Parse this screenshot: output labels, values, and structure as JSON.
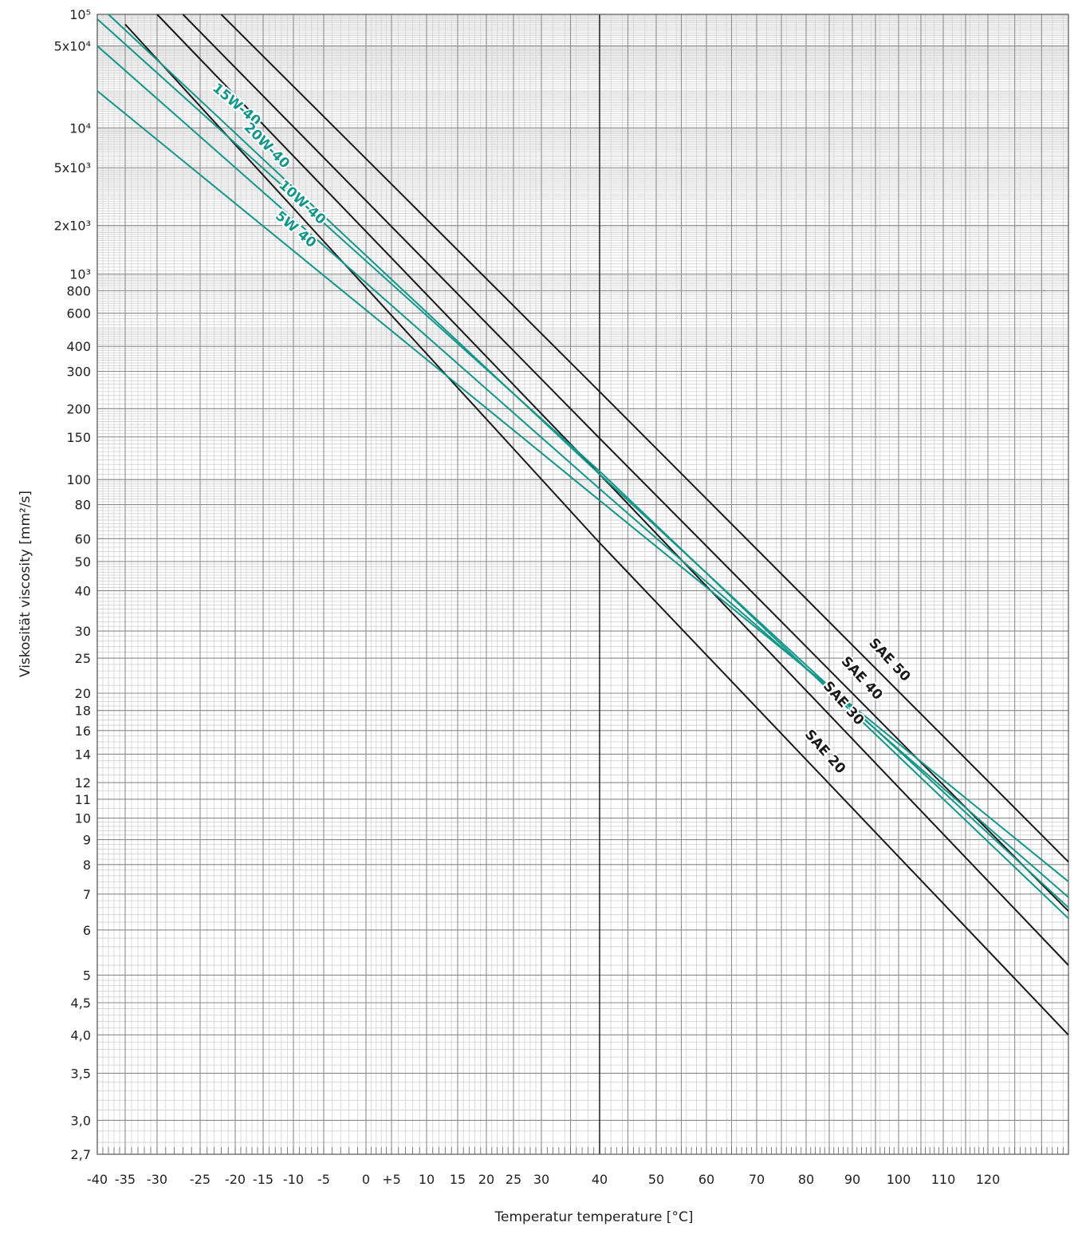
{
  "chart_data": {
    "type": "line",
    "title": "",
    "xlabel": "Temperatur temperature [°C]",
    "ylabel": "Viskosität viscosity [mm²/s]",
    "x_axis_scale": "Walther/ASTM-type temperature scale (compressed at low temperatures)",
    "y_axis_scale": "double-log (Walther) viscosity scale",
    "xlim": [
      -40,
      135
    ],
    "ylim": [
      2.7,
      100000
    ],
    "x_tick_labels": [
      {
        "value": -40,
        "label": "-40"
      },
      {
        "value": -35,
        "label": "-35"
      },
      {
        "value": -30,
        "label": "-30"
      },
      {
        "value": -25,
        "label": "-25"
      },
      {
        "value": -20,
        "label": "-20"
      },
      {
        "value": -15,
        "label": "-15"
      },
      {
        "value": -10,
        "label": "-10"
      },
      {
        "value": -5,
        "label": "-5"
      },
      {
        "value": 0,
        "label": "0"
      },
      {
        "value": 5,
        "label": "+5"
      },
      {
        "value": 10,
        "label": "10"
      },
      {
        "value": 15,
        "label": "15"
      },
      {
        "value": 20,
        "label": "20"
      },
      {
        "value": 25,
        "label": "25"
      },
      {
        "value": 30,
        "label": "30"
      },
      {
        "value": 40,
        "label": "40"
      },
      {
        "value": 50,
        "label": "50"
      },
      {
        "value": 60,
        "label": "60"
      },
      {
        "value": 70,
        "label": "70"
      },
      {
        "value": 80,
        "label": "80"
      },
      {
        "value": 90,
        "label": "90"
      },
      {
        "value": 100,
        "label": "100"
      },
      {
        "value": 110,
        "label": "110"
      },
      {
        "value": 120,
        "label": "120"
      }
    ],
    "y_tick_labels": [
      {
        "value": 100000,
        "label": "10⁵"
      },
      {
        "value": 50000,
        "label": "5x10⁴"
      },
      {
        "value": 10000,
        "label": "10⁴"
      },
      {
        "value": 5000,
        "label": "5x10³"
      },
      {
        "value": 2000,
        "label": "2x10³"
      },
      {
        "value": 1000,
        "label": "10³"
      },
      {
        "value": 800,
        "label": "800"
      },
      {
        "value": 600,
        "label": "600"
      },
      {
        "value": 400,
        "label": "400"
      },
      {
        "value": 300,
        "label": "300"
      },
      {
        "value": 200,
        "label": "200"
      },
      {
        "value": 150,
        "label": "150"
      },
      {
        "value": 100,
        "label": "100"
      },
      {
        "value": 80,
        "label": "80"
      },
      {
        "value": 60,
        "label": "60"
      },
      {
        "value": 50,
        "label": "50"
      },
      {
        "value": 40,
        "label": "40"
      },
      {
        "value": 30,
        "label": "30"
      },
      {
        "value": 25,
        "label": "25"
      },
      {
        "value": 20,
        "label": "20"
      },
      {
        "value": 18,
        "label": "18"
      },
      {
        "value": 16,
        "label": "16"
      },
      {
        "value": 14,
        "label": "14"
      },
      {
        "value": 12,
        "label": "12"
      },
      {
        "value": 11,
        "label": "11"
      },
      {
        "value": 10,
        "label": "10"
      },
      {
        "value": 9,
        "label": "9"
      },
      {
        "value": 8,
        "label": "8"
      },
      {
        "value": 7,
        "label": "7"
      },
      {
        "value": 6,
        "label": "6"
      },
      {
        "value": 5,
        "label": "5"
      },
      {
        "value": 4.5,
        "label": "4,5"
      },
      {
        "value": 4.0,
        "label": "4,0"
      },
      {
        "value": 3.5,
        "label": "3,5"
      },
      {
        "value": 3.0,
        "label": "3,0"
      },
      {
        "value": 2.7,
        "label": "2,7"
      }
    ],
    "grid": true,
    "reference_line_x": 40,
    "series": [
      {
        "name": "SAE 20",
        "color": "#1a1a1a",
        "points": [
          [
            -35,
            80000
          ],
          [
            40,
            58
          ],
          [
            135,
            4.0
          ]
        ]
      },
      {
        "name": "SAE 30",
        "color": "#1a1a1a",
        "points": [
          [
            -30,
            100000
          ],
          [
            40,
            105
          ],
          [
            135,
            5.2
          ]
        ]
      },
      {
        "name": "SAE 40",
        "color": "#1a1a1a",
        "points": [
          [
            -27,
            100000
          ],
          [
            40,
            148
          ],
          [
            135,
            6.5
          ]
        ]
      },
      {
        "name": "SAE 50",
        "color": "#1a1a1a",
        "points": [
          [
            -22,
            100000
          ],
          [
            40,
            240
          ],
          [
            135,
            8.1
          ]
        ]
      },
      {
        "name": "5W 40",
        "color": "#14968a",
        "points": [
          [
            -40,
            20000
          ],
          [
            40,
            83
          ],
          [
            135,
            7.4
          ]
        ]
      },
      {
        "name": "10W-40",
        "color": "#14968a",
        "points": [
          [
            -40,
            50000
          ],
          [
            40,
            92
          ],
          [
            135,
            6.9
          ]
        ]
      },
      {
        "name": "15W-40",
        "color": "#14968a",
        "points": [
          [
            -38,
            100000
          ],
          [
            40,
            105
          ],
          [
            135,
            6.6
          ]
        ]
      },
      {
        "name": "20W-40",
        "color": "#14968a",
        "points": [
          [
            -40,
            90000
          ],
          [
            40,
            108
          ],
          [
            135,
            6.3
          ]
        ]
      }
    ]
  }
}
